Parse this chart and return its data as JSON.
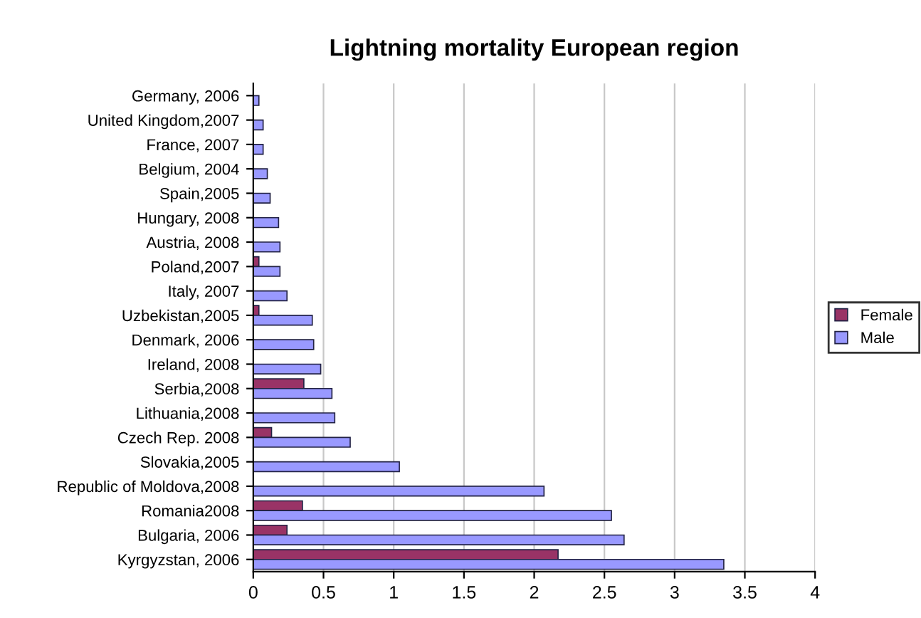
{
  "chart_data": {
    "type": "bar",
    "orientation": "horizontal",
    "title": "Lightning mortality European region",
    "categories": [
      "Germany, 2006",
      "United Kingdom,2007",
      "France, 2007",
      "Belgium, 2004",
      "Spain,2005",
      "Hungary, 2008",
      "Austria, 2008",
      "Poland,2007",
      "Italy, 2007",
      "Uzbekistan,2005",
      "Denmark, 2006",
      "Ireland, 2008",
      "Serbia,2008",
      "Lithuania,2008",
      "Czech Rep. 2008",
      "Slovakia,2005",
      "Republic of Moldova,2008",
      "Romania2008",
      "Bulgaria, 2006",
      "Kyrgyzstan, 2006"
    ],
    "series": [
      {
        "name": "Female",
        "color": "#993366",
        "values": [
          null,
          null,
          null,
          null,
          null,
          null,
          null,
          0.04,
          null,
          0.04,
          null,
          null,
          0.36,
          null,
          0.13,
          null,
          null,
          0.35,
          0.24,
          2.17
        ]
      },
      {
        "name": "Male",
        "color": "#9999ff",
        "values": [
          0.04,
          0.07,
          0.07,
          0.1,
          0.12,
          0.18,
          0.19,
          0.19,
          0.24,
          0.42,
          0.43,
          0.48,
          0.56,
          0.58,
          0.69,
          1.04,
          2.07,
          2.55,
          2.64,
          3.35
        ]
      }
    ],
    "xlim": [
      0,
      4
    ],
    "xticks": [
      0,
      0.5,
      1,
      1.5,
      2,
      2.5,
      3,
      3.5,
      4
    ],
    "grid": "x",
    "legend": "right"
  }
}
